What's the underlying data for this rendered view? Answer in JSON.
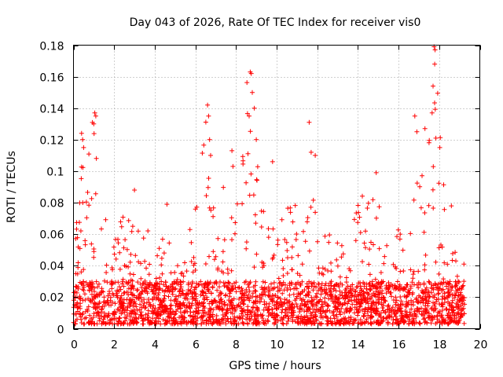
{
  "chart_data": {
    "type": "scatter",
    "title": "Day 043 of 2026, Rate Of TEC Index for receiver vis0",
    "xlabel": "GPS time / hours",
    "ylabel": "ROTI / TECUs",
    "xlim": [
      0,
      20
    ],
    "ylim": [
      0,
      0.18
    ],
    "x_ticks": [
      0,
      2,
      4,
      6,
      8,
      10,
      12,
      14,
      16,
      18,
      20
    ],
    "x_tick_labels": [
      "0",
      "2",
      "4",
      "6",
      "8",
      "10",
      "12",
      "14",
      "16",
      "18",
      "20"
    ],
    "y_ticks": [
      0,
      0.02,
      0.04,
      0.06,
      0.08,
      0.1,
      0.12,
      0.14,
      0.16,
      0.18
    ],
    "y_tick_labels": [
      "0",
      "0.02",
      "0.04",
      "0.06",
      "0.08",
      "0.1",
      "0.12",
      "0.14",
      "0.16",
      "0.18"
    ],
    "grid": true,
    "marker": "+",
    "marker_color": "#ff0000",
    "data_x_range": [
      0,
      19.25
    ],
    "series": [
      {
        "name": "ROTI",
        "envelope": {
          "description": "Upper envelope of dense scatter, by hour",
          "x": [
            0,
            0.5,
            1.0,
            1.5,
            2.0,
            2.5,
            3.0,
            3.5,
            4.0,
            4.5,
            5.0,
            5.5,
            6.0,
            6.5,
            7.0,
            7.5,
            8.0,
            8.5,
            9.0,
            9.5,
            10.0,
            10.5,
            11.0,
            11.5,
            12.0,
            12.5,
            13.0,
            13.5,
            14.0,
            14.5,
            15.0,
            15.5,
            16.0,
            16.5,
            17.0,
            17.5,
            18.0,
            18.5,
            19.0
          ],
          "y": [
            0.065,
            0.12,
            0.135,
            0.085,
            0.055,
            0.075,
            0.07,
            0.065,
            0.066,
            0.06,
            0.05,
            0.048,
            0.085,
            0.135,
            0.075,
            0.095,
            0.085,
            0.16,
            0.125,
            0.09,
            0.085,
            0.09,
            0.095,
            0.11,
            0.07,
            0.065,
            0.06,
            0.05,
            0.082,
            0.09,
            0.08,
            0.075,
            0.064,
            0.05,
            0.13,
            0.135,
            0.17,
            0.05,
            0.048
          ]
        },
        "baseline_range": [
          0.003,
          0.02
        ],
        "outliers": [
          {
            "x": 0.4,
            "y": 0.124
          },
          {
            "x": 0.45,
            "y": 0.12
          },
          {
            "x": 0.5,
            "y": 0.115
          },
          {
            "x": 1.0,
            "y": 0.13
          },
          {
            "x": 1.05,
            "y": 0.137
          },
          {
            "x": 1.1,
            "y": 0.135
          },
          {
            "x": 3.0,
            "y": 0.088
          },
          {
            "x": 4.6,
            "y": 0.079
          },
          {
            "x": 6.6,
            "y": 0.142
          },
          {
            "x": 6.65,
            "y": 0.135
          },
          {
            "x": 6.7,
            "y": 0.12
          },
          {
            "x": 6.75,
            "y": 0.11
          },
          {
            "x": 7.8,
            "y": 0.113
          },
          {
            "x": 7.85,
            "y": 0.103
          },
          {
            "x": 8.7,
            "y": 0.163
          },
          {
            "x": 8.75,
            "y": 0.162
          },
          {
            "x": 8.8,
            "y": 0.15
          },
          {
            "x": 8.9,
            "y": 0.14
          },
          {
            "x": 9.0,
            "y": 0.12
          },
          {
            "x": 9.8,
            "y": 0.106
          },
          {
            "x": 11.6,
            "y": 0.131
          },
          {
            "x": 11.7,
            "y": 0.112
          },
          {
            "x": 11.9,
            "y": 0.11
          },
          {
            "x": 14.9,
            "y": 0.099
          },
          {
            "x": 16.8,
            "y": 0.135
          },
          {
            "x": 16.9,
            "y": 0.125
          },
          {
            "x": 17.3,
            "y": 0.127
          },
          {
            "x": 17.5,
            "y": 0.118
          },
          {
            "x": 17.65,
            "y": 0.137
          },
          {
            "x": 17.75,
            "y": 0.179
          },
          {
            "x": 17.8,
            "y": 0.177
          },
          {
            "x": 17.78,
            "y": 0.168
          },
          {
            "x": 17.7,
            "y": 0.154
          },
          {
            "x": 18.6,
            "y": 0.078
          }
        ]
      }
    ]
  }
}
